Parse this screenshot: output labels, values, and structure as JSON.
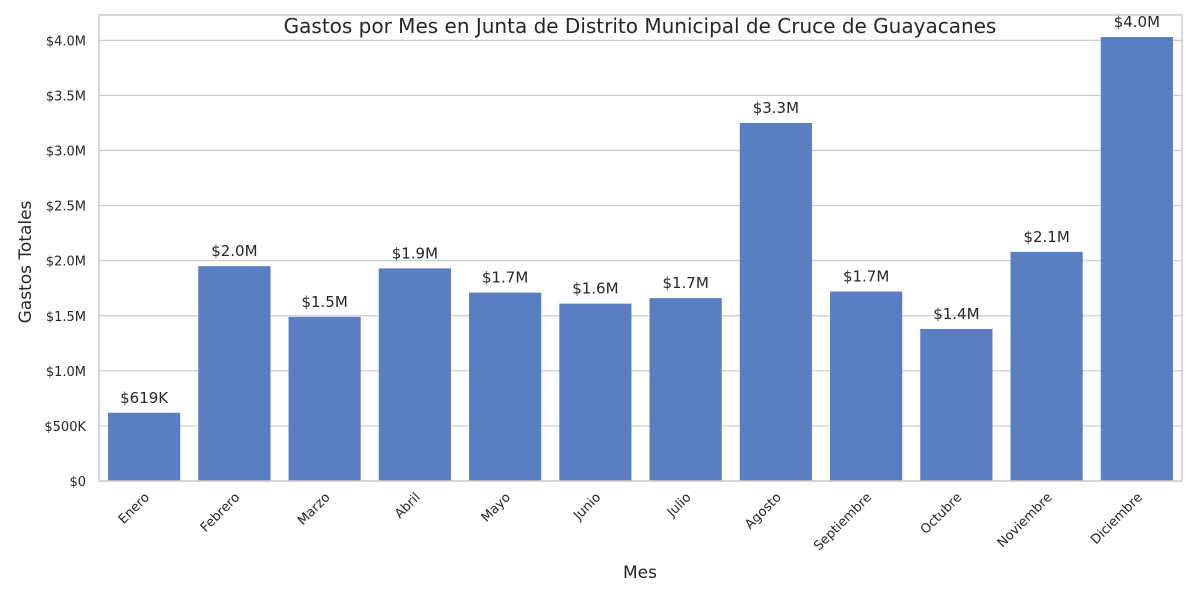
{
  "chart_data": {
    "type": "bar",
    "title": "Gastos por Mes en Junta de Distrito Municipal de Cruce de Guayacanes",
    "xlabel": "Mes",
    "ylabel": "Gastos Totales",
    "categories": [
      "Enero",
      "Febrero",
      "Marzo",
      "Abril",
      "Mayo",
      "Junio",
      "Julio",
      "Agosto",
      "Septiembre",
      "Octubre",
      "Noviembre",
      "Diciembre"
    ],
    "values": [
      619000,
      1950000,
      1490000,
      1930000,
      1710000,
      1610000,
      1660000,
      3250000,
      1720000,
      1380000,
      2080000,
      4030000
    ],
    "data_labels": [
      "$619K",
      "$2.0M",
      "$1.5M",
      "$1.9M",
      "$1.7M",
      "$1.6M",
      "$1.7M",
      "$3.3M",
      "$1.7M",
      "$1.4M",
      "$2.1M",
      "$4.0M"
    ],
    "ylim": [
      0,
      4230000
    ],
    "yticks": [
      0,
      500000,
      1000000,
      1500000,
      2000000,
      2500000,
      3000000,
      3500000,
      4000000
    ],
    "ytick_labels": [
      "$0",
      "$500K",
      "$1.0M",
      "$1.5M",
      "$2.0M",
      "$2.5M",
      "$3.0M",
      "$3.5M",
      "$4.0M"
    ],
    "grid": true,
    "bar_color": "#5a7ec2",
    "grid_color": "#cccccc",
    "text_color": "#262626"
  }
}
